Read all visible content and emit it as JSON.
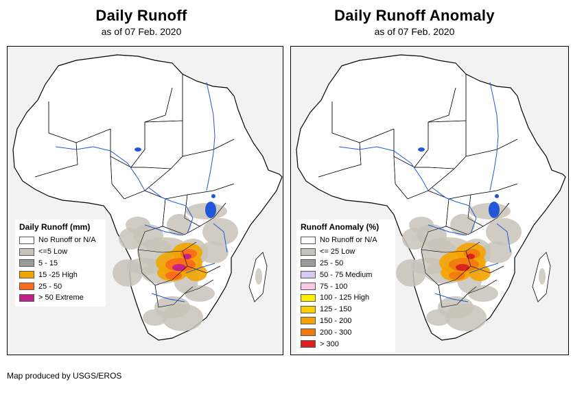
{
  "left_map": {
    "title": "Daily Runoff",
    "subtitle": "as of 07 Feb. 2020",
    "legend": {
      "title": "Daily Runoff (mm)",
      "items": [
        {
          "label": "No Runoff or N/A",
          "color": "#ffffff"
        },
        {
          "label": "<=5 Low",
          "color": "#c8c3b9"
        },
        {
          "label": "5 - 15",
          "color": "#9b9b9b"
        },
        {
          "label": "15 -25 High",
          "color": "#f0a500"
        },
        {
          "label": "25 - 50",
          "color": "#fb6a1e"
        },
        {
          "label": "> 50 Extreme",
          "color": "#c2208a"
        }
      ]
    }
  },
  "right_map": {
    "title": "Daily Runoff Anomaly",
    "subtitle": "as of 07 Feb. 2020",
    "legend": {
      "title": "Runoff Anomaly (%)",
      "items": [
        {
          "label": "No Runoff or N/A",
          "color": "#ffffff"
        },
        {
          "label": "<= 25 Low",
          "color": "#c8c3b9"
        },
        {
          "label": "25 - 50",
          "color": "#9b9b9b"
        },
        {
          "label": "50 - 75 Medium",
          "color": "#d9c8f0"
        },
        {
          "label": "75 - 100",
          "color": "#fbc8e6"
        },
        {
          "label": "100 - 125 High",
          "color": "#ffee00"
        },
        {
          "label": "125 - 150",
          "color": "#fbd000"
        },
        {
          "label": "150 - 200",
          "color": "#f5a300"
        },
        {
          "label": "200 - 300",
          "color": "#f07a10"
        },
        {
          "label": "> 300",
          "color": "#d8201e"
        }
      ]
    }
  },
  "credit": "Map produced by USGS/EROS",
  "colors": {
    "water": "#1f57d6",
    "river": "#1f57d6",
    "land": "#ffffff",
    "ocean": "#f2f2f2"
  }
}
